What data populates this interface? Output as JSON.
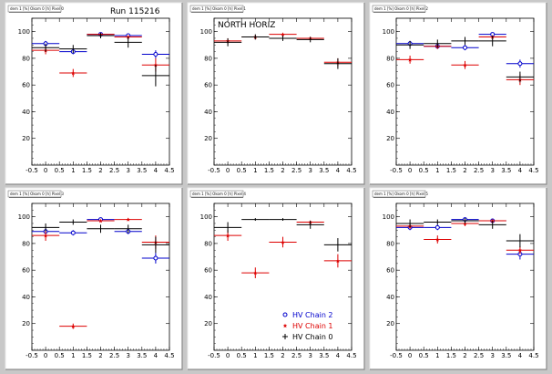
{
  "colors": {
    "background": "#c8c8c8",
    "pad": "#ffffff",
    "frame_area": "#ffffff",
    "Chain2": "#0000cc",
    "Chain1": "#dd0000",
    "Chain0": "#000000"
  },
  "chart_data": [
    {
      "type": "scatter",
      "pad_title": "dem 1 [%] Okom 0 [h] Pixel 0",
      "annotation": "Run 115216",
      "xlim": [
        -0.5,
        4.5
      ],
      "ylim": [
        0,
        110
      ],
      "x_ticks": [
        "-0.5",
        "0",
        "0.5",
        "1",
        "1.5",
        "2",
        "2.5",
        "3",
        "3.5",
        "4",
        "4.5"
      ],
      "y_ticks": [
        "20",
        "40",
        "60",
        "80",
        "100"
      ],
      "series": [
        {
          "key": "Chain2",
          "points": [
            {
              "x": 0,
              "y": 91,
              "err": 2
            },
            {
              "x": 1,
              "y": 85,
              "err": 2
            },
            {
              "x": 2,
              "y": 98,
              "err": 1
            },
            {
              "x": 3,
              "y": 97,
              "err": 1
            },
            {
              "x": 4,
              "y": 83,
              "err": 3
            }
          ]
        },
        {
          "key": "Chain1",
          "points": [
            {
              "x": 0,
              "y": 86,
              "err": 3
            },
            {
              "x": 1,
              "y": 69,
              "err": 3
            },
            {
              "x": 2,
              "y": 98,
              "err": 1
            },
            {
              "x": 3,
              "y": 96,
              "err": 1
            },
            {
              "x": 4,
              "y": 75,
              "err": 5
            }
          ]
        },
        {
          "key": "Chain0",
          "points": [
            {
              "x": 0,
              "y": 88,
              "err": 3
            },
            {
              "x": 1,
              "y": 87,
              "err": 3
            },
            {
              "x": 2,
              "y": 97,
              "err": 2
            },
            {
              "x": 3,
              "y": 92,
              "err": 4
            },
            {
              "x": 4,
              "y": 67,
              "err": 8
            }
          ]
        }
      ]
    },
    {
      "type": "scatter",
      "pad_title": "dem 1 [%] Okom 0 [h] Pixel 1",
      "annotation": "NORTH HORIZ",
      "xlim": [
        -0.5,
        4.5
      ],
      "ylim": [
        0,
        110
      ],
      "x_ticks": [
        "-0.5",
        "0",
        "0.5",
        "1",
        "1.5",
        "2",
        "2.5",
        "3",
        "3.5",
        "4",
        "4.5"
      ],
      "y_ticks": [
        "20",
        "40",
        "60",
        "80",
        "100"
      ],
      "series": [
        {
          "key": "Chain1",
          "points": [
            {
              "x": 0,
              "y": 93,
              "err": 2
            },
            {
              "x": 1,
              "y": 96,
              "err": 1
            },
            {
              "x": 2,
              "y": 98,
              "err": 1
            },
            {
              "x": 3,
              "y": 95,
              "err": 1
            },
            {
              "x": 4,
              "y": 77,
              "err": 3
            }
          ]
        },
        {
          "key": "Chain0",
          "points": [
            {
              "x": 0,
              "y": 92,
              "err": 3
            },
            {
              "x": 1,
              "y": 96,
              "err": 2
            },
            {
              "x": 2,
              "y": 95,
              "err": 2
            },
            {
              "x": 3,
              "y": 94,
              "err": 2
            },
            {
              "x": 4,
              "y": 76,
              "err": 4
            }
          ]
        }
      ]
    },
    {
      "type": "scatter",
      "pad_title": "dem 1 [%] Okom 0 [h] Pixel 2",
      "annotation": "",
      "xlim": [
        -0.5,
        4.5
      ],
      "ylim": [
        0,
        110
      ],
      "x_ticks": [
        "-0.5",
        "0",
        "0.5",
        "1",
        "1.5",
        "2",
        "2.5",
        "3",
        "3.5",
        "4",
        "4.5"
      ],
      "y_ticks": [
        "20",
        "40",
        "60",
        "80",
        "100"
      ],
      "series": [
        {
          "key": "Chain2",
          "points": [
            {
              "x": 0,
              "y": 91,
              "err": 2
            },
            {
              "x": 1,
              "y": 89,
              "err": 2
            },
            {
              "x": 2,
              "y": 88,
              "err": 2
            },
            {
              "x": 3,
              "y": 98,
              "err": 1
            },
            {
              "x": 4,
              "y": 76,
              "err": 3
            }
          ]
        },
        {
          "key": "Chain1",
          "points": [
            {
              "x": 0,
              "y": 79,
              "err": 3
            },
            {
              "x": 1,
              "y": 89,
              "err": 2
            },
            {
              "x": 2,
              "y": 75,
              "err": 3
            },
            {
              "x": 3,
              "y": 96,
              "err": 1
            },
            {
              "x": 4,
              "y": 64,
              "err": 4
            }
          ]
        },
        {
          "key": "Chain0",
          "points": [
            {
              "x": 0,
              "y": 90,
              "err": 3
            },
            {
              "x": 1,
              "y": 91,
              "err": 3
            },
            {
              "x": 2,
              "y": 93,
              "err": 3
            },
            {
              "x": 3,
              "y": 93,
              "err": 4
            },
            {
              "x": 4,
              "y": 66,
              "err": 4
            }
          ]
        }
      ]
    },
    {
      "type": "scatter",
      "pad_title": "dem 1 [%] Okom 0 [h] Pixel 3",
      "annotation": "",
      "xlim": [
        -0.5,
        4.5
      ],
      "ylim": [
        0,
        110
      ],
      "x_ticks": [
        "-0.5",
        "0",
        "0.5",
        "1",
        "1.5",
        "2",
        "2.5",
        "3",
        "3.5",
        "4",
        "4.5"
      ],
      "y_ticks": [
        "20",
        "40",
        "60",
        "80",
        "100"
      ],
      "series": [
        {
          "key": "Chain2",
          "points": [
            {
              "x": 0,
              "y": 89,
              "err": 3
            },
            {
              "x": 1,
              "y": 88,
              "err": 2
            },
            {
              "x": 2,
              "y": 98,
              "err": 1
            },
            {
              "x": 3,
              "y": 89,
              "err": 2
            },
            {
              "x": 4,
              "y": 69,
              "err": 4
            }
          ]
        },
        {
          "key": "Chain1",
          "points": [
            {
              "x": 0,
              "y": 86,
              "err": 4
            },
            {
              "x": 1,
              "y": 18,
              "err": 2
            },
            {
              "x": 2,
              "y": 97,
              "err": 1
            },
            {
              "x": 3,
              "y": 98,
              "err": 1
            },
            {
              "x": 4,
              "y": 81,
              "err": 5
            }
          ]
        },
        {
          "key": "Chain0",
          "points": [
            {
              "x": 0,
              "y": 92,
              "err": 3
            },
            {
              "x": 1,
              "y": 96,
              "err": 2
            },
            {
              "x": 2,
              "y": 91,
              "err": 3
            },
            {
              "x": 3,
              "y": 91,
              "err": 3
            },
            {
              "x": 4,
              "y": 79,
              "err": 6
            }
          ]
        }
      ]
    },
    {
      "type": "scatter",
      "pad_title": "dem 1 [%] Okom 0 [h] Pixel 4",
      "annotation": "",
      "xlim": [
        -0.5,
        4.5
      ],
      "ylim": [
        0,
        110
      ],
      "x_ticks": [
        "-0.5",
        "0",
        "0.5",
        "1",
        "1.5",
        "2",
        "2.5",
        "3",
        "3.5",
        "4",
        "4.5"
      ],
      "y_ticks": [
        "20",
        "40",
        "60",
        "80",
        "100"
      ],
      "legend": {
        "placement": "bottom-right",
        "entries": [
          {
            "key": "Chain2",
            "label": "HV Chain 2"
          },
          {
            "key": "Chain1",
            "label": "HV Chain 1"
          },
          {
            "key": "Chain0",
            "label": "HV Chain 0"
          }
        ]
      },
      "series": [
        {
          "key": "Chain1",
          "points": [
            {
              "x": 0,
              "y": 86,
              "err": 4
            },
            {
              "x": 1,
              "y": 58,
              "err": 4
            },
            {
              "x": 2,
              "y": 81,
              "err": 4
            },
            {
              "x": 3,
              "y": 96,
              "err": 1
            },
            {
              "x": 4,
              "y": 67,
              "err": 5
            }
          ]
        },
        {
          "key": "Chain0",
          "points": [
            {
              "x": 0,
              "y": 92,
              "err": 4
            },
            {
              "x": 1,
              "y": 98,
              "err": 1
            },
            {
              "x": 2,
              "y": 98,
              "err": 1
            },
            {
              "x": 3,
              "y": 94,
              "err": 3
            },
            {
              "x": 4,
              "y": 79,
              "err": 5
            }
          ]
        }
      ]
    },
    {
      "type": "scatter",
      "pad_title": "dem 1 [%] Okom 0 [h] Pixel 5",
      "annotation": "",
      "xlim": [
        -0.5,
        4.5
      ],
      "ylim": [
        0,
        110
      ],
      "x_ticks": [
        "-0.5",
        "0",
        "0.5",
        "1",
        "1.5",
        "2",
        "2.5",
        "3",
        "3.5",
        "4",
        "4.5"
      ],
      "y_ticks": [
        "20",
        "40",
        "60",
        "80",
        "100"
      ],
      "series": [
        {
          "key": "Chain2",
          "points": [
            {
              "x": 0,
              "y": 92,
              "err": 2
            },
            {
              "x": 1,
              "y": 92,
              "err": 2
            },
            {
              "x": 2,
              "y": 98,
              "err": 1
            },
            {
              "x": 3,
              "y": 97,
              "err": 1
            },
            {
              "x": 4,
              "y": 72,
              "err": 4
            }
          ]
        },
        {
          "key": "Chain1",
          "points": [
            {
              "x": 0,
              "y": 93,
              "err": 2
            },
            {
              "x": 1,
              "y": 83,
              "err": 3
            },
            {
              "x": 2,
              "y": 95,
              "err": 2
            },
            {
              "x": 3,
              "y": 97,
              "err": 1
            },
            {
              "x": 4,
              "y": 75,
              "err": 3
            }
          ]
        },
        {
          "key": "Chain0",
          "points": [
            {
              "x": 0,
              "y": 95,
              "err": 3
            },
            {
              "x": 1,
              "y": 96,
              "err": 2
            },
            {
              "x": 2,
              "y": 97,
              "err": 2
            },
            {
              "x": 3,
              "y": 94,
              "err": 3
            },
            {
              "x": 4,
              "y": 82,
              "err": 5
            }
          ]
        }
      ]
    }
  ]
}
